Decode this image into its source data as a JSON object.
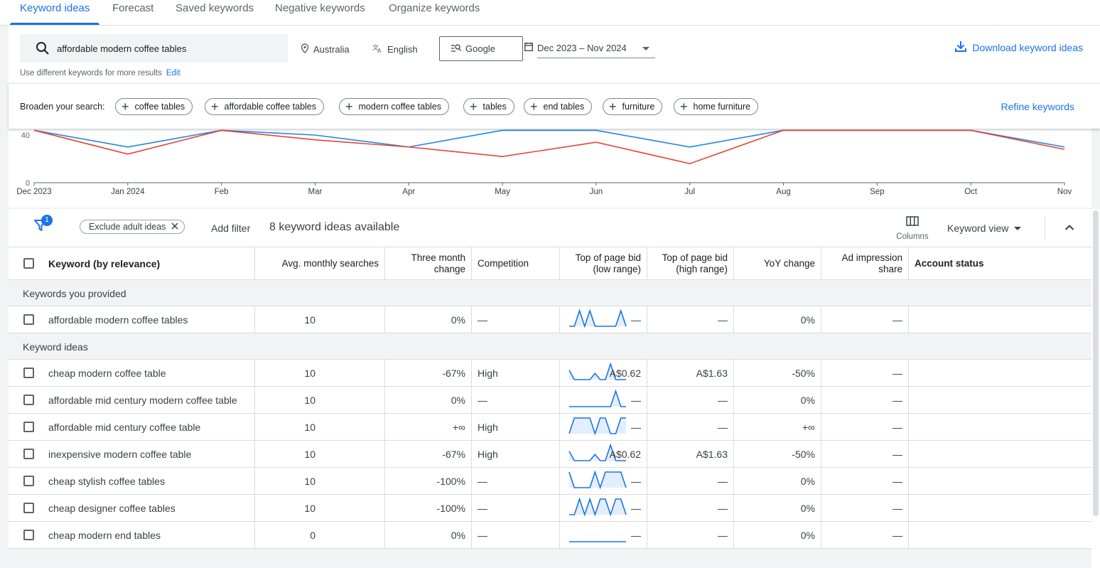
{
  "tabs": [
    "Keyword ideas",
    "Forecast",
    "Saved keywords",
    "Negative keywords",
    "Organize keywords"
  ],
  "search": {
    "query": "affordable modern coffee tables",
    "location": "Australia",
    "language": "English",
    "network": "Google",
    "date_range": "Dec 2023 – Nov 2024",
    "download_label": "Download keyword ideas",
    "hint": "Use different keywords for more results",
    "edit_label": "Edit"
  },
  "broaden": {
    "label": "Broaden your search:",
    "chips": [
      "coffee tables",
      "affordable coffee tables",
      "modern coffee tables",
      "tables",
      "end tables",
      "furniture",
      "home furniture"
    ],
    "refine_label": "Refine keywords"
  },
  "chart_data": {
    "type": "line",
    "categories": [
      "Dec 2023",
      "Jan 2024",
      "Feb",
      "Mar",
      "Apr",
      "May",
      "Jun",
      "Jul",
      "Aug",
      "Sep",
      "Oct",
      "Nov"
    ],
    "y_ticks": [
      "0",
      "40"
    ],
    "series": [
      {
        "color": "#1e88e5",
        "values": [
          44,
          30,
          44,
          40,
          30,
          44,
          44,
          30,
          44,
          44,
          44,
          30
        ]
      },
      {
        "color": "#ea4335",
        "values": [
          44,
          24,
          44,
          36,
          30,
          22,
          34,
          16,
          44,
          44,
          44,
          28
        ]
      }
    ]
  },
  "toolbar": {
    "filter_count": "1",
    "exclude_chip": "Exclude adult ideas",
    "add_filter": "Add filter",
    "available": "8 keyword ideas available",
    "columns_label": "Columns",
    "view_label": "Keyword view"
  },
  "table": {
    "headers": {
      "keyword": "Keyword (by relevance)",
      "avg": "Avg. monthly searches",
      "three_month_1": "Three month",
      "three_month_2": "change",
      "competition": "Competition",
      "bid_low_1": "Top of page bid",
      "bid_low_2": "(low range)",
      "bid_high_1": "Top of page bid",
      "bid_high_2": "(high range)",
      "yoy": "YoY change",
      "impr_1": "Ad impression",
      "impr_2": "share",
      "status": "Account status"
    },
    "group_provided": "Keywords you provided",
    "group_ideas": "Keyword ideas",
    "provided": [
      {
        "keyword": "affordable modern coffee tables",
        "avg": "10",
        "three_month": "0%",
        "competition": "—",
        "bid_low": "—",
        "bid_high": "—",
        "yoy": "0%",
        "impr": "—",
        "status": "",
        "spark": [
          0,
          0,
          1,
          0,
          1,
          0,
          0,
          0,
          0,
          0,
          1,
          0
        ]
      }
    ],
    "ideas": [
      {
        "keyword": "cheap modern coffee table",
        "avg": "10",
        "three_month": "-67%",
        "competition": "High",
        "bid_low": "A$0.62",
        "bid_high": "A$1.63",
        "yoy": "-50%",
        "impr": "—",
        "status": "",
        "spark": [
          0.6,
          0,
          0,
          0,
          0,
          0.4,
          0,
          0,
          1,
          0,
          0,
          0
        ]
      },
      {
        "keyword": "affordable mid century modern coffee table",
        "avg": "10",
        "three_month": "0%",
        "competition": "—",
        "bid_low": "—",
        "bid_high": "—",
        "yoy": "0%",
        "impr": "—",
        "status": "",
        "spark": [
          0,
          0,
          0,
          0,
          0,
          0,
          0,
          0,
          0,
          1,
          0,
          0
        ]
      },
      {
        "keyword": "affordable mid century coffee table",
        "avg": "10",
        "three_month": "+∞",
        "competition": "High",
        "bid_low": "—",
        "bid_high": "—",
        "yoy": "+∞",
        "impr": "—",
        "status": "",
        "spark": [
          0,
          1,
          1,
          1,
          1,
          0,
          1,
          1,
          0,
          0,
          1,
          1
        ]
      },
      {
        "keyword": "inexpensive modern coffee table",
        "avg": "10",
        "three_month": "-67%",
        "competition": "High",
        "bid_low": "A$0.62",
        "bid_high": "A$1.63",
        "yoy": "-50%",
        "impr": "—",
        "status": "",
        "spark": [
          0.6,
          0,
          0,
          0,
          0,
          0.4,
          0,
          0,
          1,
          0,
          0,
          0
        ]
      },
      {
        "keyword": "cheap stylish coffee tables",
        "avg": "10",
        "three_month": "-100%",
        "competition": "—",
        "bid_low": "—",
        "bid_high": "—",
        "yoy": "0%",
        "impr": "—",
        "status": "",
        "spark": [
          1,
          0,
          0,
          0,
          0,
          1,
          0,
          1,
          1,
          1,
          1,
          0
        ]
      },
      {
        "keyword": "cheap designer coffee tables",
        "avg": "10",
        "three_month": "-100%",
        "competition": "—",
        "bid_low": "—",
        "bid_high": "—",
        "yoy": "0%",
        "impr": "—",
        "status": "",
        "spark": [
          0,
          0,
          1,
          0,
          1,
          0,
          1,
          1,
          0,
          1,
          1,
          0
        ]
      },
      {
        "keyword": "cheap modern end tables",
        "avg": "0",
        "three_month": "0%",
        "competition": "—",
        "bid_low": "—",
        "bid_high": "—",
        "yoy": "0%",
        "impr": "—",
        "status": "",
        "spark": [
          0,
          0,
          0,
          0,
          0,
          0,
          0,
          0,
          0,
          0,
          0,
          0
        ]
      }
    ]
  }
}
